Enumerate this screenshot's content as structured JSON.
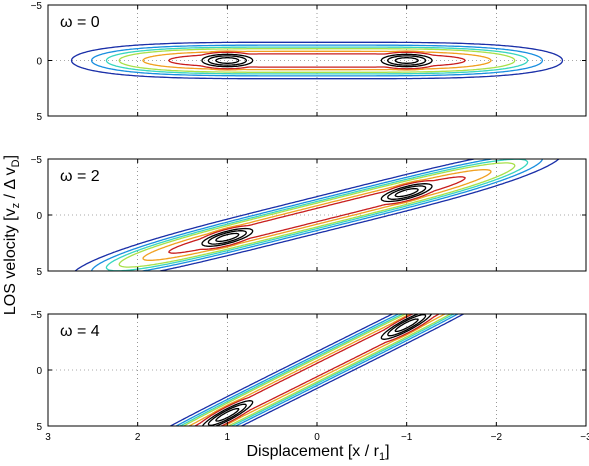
{
  "chart_data": [
    {
      "type": "contour",
      "panel_label": "ω = 0",
      "omega": 0,
      "xlim": [
        3,
        -3
      ],
      "ylim": [
        -5,
        5
      ],
      "x_ticks": [
        3,
        2,
        1,
        0,
        -1,
        -2,
        -3
      ],
      "y_ticks": [
        -5,
        0,
        5
      ],
      "y_reversed": true,
      "grid": true,
      "peaks_x": [
        1,
        -1
      ]
    },
    {
      "type": "contour",
      "panel_label": "ω = 2",
      "omega": 2,
      "xlim": [
        3,
        -3
      ],
      "ylim": [
        -5,
        5
      ],
      "x_ticks": [
        3,
        2,
        1,
        0,
        -1,
        -2,
        -3
      ],
      "y_ticks": [
        -5,
        0,
        5
      ],
      "y_reversed": true,
      "grid": true,
      "peaks_x": [
        1,
        -1
      ]
    },
    {
      "type": "contour",
      "panel_label": "ω = 4",
      "omega": 4,
      "xlim": [
        3,
        -3
      ],
      "ylim": [
        -5,
        5
      ],
      "x_ticks": [
        3,
        2,
        1,
        0,
        -1,
        -2,
        -3
      ],
      "y_ticks": [
        -5,
        0,
        5
      ],
      "y_reversed": true,
      "grid": true,
      "peaks_x": [
        1,
        -1
      ]
    }
  ],
  "axes": {
    "xlabel": "Displacement [x / r",
    "xlabel_sub": "1",
    "xlabel_end": "]",
    "ylabel": "LOS velocity [v",
    "ylabel_sub1": "z",
    "ylabel_mid": " / Δ v",
    "ylabel_sub2": "D",
    "ylabel_end": "]"
  },
  "contour_levels": [
    {
      "level": 0.05,
      "color": "#1a2fa8"
    },
    {
      "level": 0.1,
      "color": "#1a8fe0"
    },
    {
      "level": 0.15,
      "color": "#38d6c0"
    },
    {
      "level": 0.2,
      "color": "#a8e04a"
    },
    {
      "level": 0.3,
      "color": "#f0a020"
    },
    {
      "level": 0.4,
      "color": "#c81e1e"
    },
    {
      "level": 0.6,
      "color": "#000000"
    },
    {
      "level": 0.75,
      "color": "#000000"
    },
    {
      "level": 0.9,
      "color": "#000000"
    }
  ]
}
